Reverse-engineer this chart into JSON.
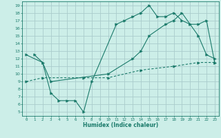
{
  "xlabel": "Humidex (Indice chaleur)",
  "bg_color": "#cceee8",
  "grid_color": "#aacccc",
  "line_color": "#1a7a6a",
  "xlim": [
    -0.5,
    23.5
  ],
  "ylim": [
    4.5,
    19.5
  ],
  "xticks": [
    0,
    1,
    2,
    3,
    4,
    5,
    6,
    7,
    8,
    9,
    10,
    11,
    12,
    13,
    14,
    15,
    16,
    17,
    18,
    19,
    20,
    21,
    22,
    23
  ],
  "yticks": [
    5,
    6,
    7,
    8,
    9,
    10,
    11,
    12,
    13,
    14,
    15,
    16,
    17,
    18,
    19
  ],
  "line1_x": [
    1,
    2,
    3,
    10,
    13,
    14,
    15,
    17,
    18,
    19,
    20,
    21,
    22,
    23
  ],
  "line1_y": [
    12.5,
    11.5,
    9.0,
    10.0,
    12.0,
    13.0,
    15.0,
    16.5,
    17.0,
    18.0,
    16.5,
    16.5,
    17.0,
    11.5
  ],
  "line2_x": [
    0,
    2,
    3,
    4,
    5,
    6,
    7,
    8,
    11,
    12,
    13,
    14,
    15,
    16,
    17,
    18,
    19,
    20,
    21,
    22,
    23
  ],
  "line2_y": [
    12.5,
    11.5,
    7.5,
    6.5,
    6.5,
    6.5,
    5.0,
    9.0,
    16.5,
    17.0,
    17.5,
    18.0,
    19.0,
    17.5,
    17.5,
    18.0,
    17.0,
    16.5,
    15.0,
    12.5,
    12.0
  ],
  "line3_x": [
    0,
    2,
    7,
    10,
    14,
    18,
    21,
    23
  ],
  "line3_y": [
    9.0,
    9.5,
    9.5,
    9.5,
    10.5,
    11.0,
    11.5,
    11.5
  ]
}
